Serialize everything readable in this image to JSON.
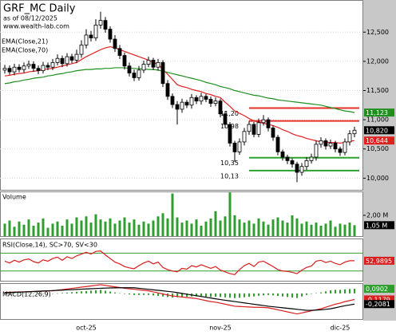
{
  "header": {
    "title": "GRF_MC Daily",
    "date": "as of 08/12/2025",
    "site": "www.wealth-lab.com"
  },
  "chart_data": [
    {
      "type": "candlestick",
      "categories": [
        null,
        null,
        null,
        null,
        null,
        null,
        null,
        null,
        null,
        null,
        null,
        null,
        null,
        null,
        null,
        null,
        null,
        "oct-25",
        null,
        null,
        null,
        null,
        null,
        null,
        null,
        null,
        null,
        null,
        null,
        null,
        null,
        null,
        null,
        null,
        null,
        null,
        null,
        null,
        null,
        null,
        null,
        null,
        null,
        null,
        null,
        "nov-25",
        null,
        null,
        null,
        null,
        null,
        null,
        null,
        null,
        null,
        null,
        null,
        null,
        null,
        null,
        null,
        null,
        null,
        null,
        null,
        null,
        null,
        null,
        null,
        null,
        "dic-25",
        null,
        null,
        null
      ],
      "open": [
        11.85,
        11.88,
        11.82,
        11.9,
        11.86,
        11.92,
        11.95,
        11.88,
        11.84,
        11.93,
        11.9,
        11.98,
        12.05,
        11.96,
        12.08,
        12.02,
        12.12,
        12.28,
        12.45,
        12.4,
        12.62,
        12.7,
        12.55,
        12.38,
        12.22,
        12.1,
        11.92,
        11.8,
        11.72,
        11.85,
        11.95,
        12.02,
        11.9,
        11.98,
        11.62,
        11.4,
        11.26,
        11.18,
        11.3,
        11.25,
        11.38,
        11.32,
        11.4,
        11.35,
        11.28,
        11.32,
        11.1,
        10.92,
        10.6,
        10.45,
        10.62,
        10.8,
        10.92,
        10.75,
        10.95,
        11.0,
        10.86,
        10.7,
        10.45,
        10.36,
        10.3,
        10.24,
        10.1,
        10.2,
        10.3,
        10.36,
        10.58,
        10.64,
        10.55,
        10.6,
        10.5,
        10.44,
        10.62,
        10.76
      ],
      "high": [
        11.94,
        11.93,
        11.96,
        11.95,
        11.98,
        12.01,
        12.0,
        11.93,
        11.99,
        11.98,
        12.04,
        12.12,
        12.1,
        12.14,
        12.13,
        12.2,
        12.36,
        12.55,
        12.52,
        12.72,
        12.85,
        12.76,
        12.6,
        12.45,
        12.28,
        12.15,
        11.98,
        11.86,
        11.92,
        12.01,
        12.08,
        12.06,
        12.04,
        12.02,
        11.68,
        11.45,
        11.32,
        11.36,
        11.34,
        11.44,
        11.42,
        11.46,
        11.44,
        11.4,
        11.38,
        11.36,
        11.15,
        10.96,
        10.64,
        10.68,
        10.86,
        10.98,
        10.96,
        11.02,
        11.08,
        11.04,
        10.9,
        10.74,
        10.49,
        10.4,
        10.34,
        10.28,
        10.26,
        10.36,
        10.42,
        10.64,
        10.7,
        10.68,
        10.66,
        10.64,
        10.54,
        10.68,
        10.82,
        10.88
      ],
      "low": [
        11.79,
        11.77,
        11.76,
        11.81,
        11.8,
        11.87,
        11.82,
        11.78,
        11.79,
        11.85,
        11.85,
        11.93,
        11.9,
        11.91,
        11.97,
        11.97,
        12.06,
        12.22,
        12.34,
        12.35,
        12.56,
        12.49,
        12.32,
        12.16,
        12.04,
        11.86,
        11.74,
        11.66,
        11.67,
        11.8,
        11.9,
        11.85,
        11.84,
        11.56,
        11.34,
        11.2,
        10.92,
        11.12,
        11.2,
        11.19,
        11.27,
        11.26,
        11.3,
        11.22,
        11.23,
        11.04,
        10.86,
        10.54,
        10.28,
        10.4,
        10.56,
        10.74,
        10.7,
        10.7,
        10.9,
        10.8,
        10.64,
        10.39,
        10.3,
        10.24,
        10.18,
        9.93,
        10.04,
        10.14,
        10.25,
        10.3,
        10.52,
        10.49,
        10.5,
        10.44,
        10.38,
        10.39,
        10.56,
        10.7
      ],
      "close": [
        11.88,
        11.82,
        11.9,
        11.86,
        11.92,
        11.95,
        11.88,
        11.84,
        11.93,
        11.9,
        11.98,
        12.05,
        11.96,
        12.08,
        12.02,
        12.12,
        12.28,
        12.45,
        12.4,
        12.62,
        12.7,
        12.55,
        12.38,
        12.22,
        12.1,
        11.92,
        11.8,
        11.72,
        11.85,
        11.95,
        12.02,
        11.9,
        11.98,
        11.62,
        11.4,
        11.26,
        11.18,
        11.3,
        11.25,
        11.38,
        11.32,
        11.4,
        11.35,
        11.28,
        11.32,
        11.1,
        10.92,
        10.6,
        10.45,
        10.62,
        10.8,
        10.92,
        10.75,
        10.95,
        11.0,
        10.86,
        10.7,
        10.45,
        10.36,
        10.3,
        10.24,
        10.1,
        10.2,
        10.3,
        10.36,
        10.58,
        10.64,
        10.55,
        10.6,
        10.5,
        10.44,
        10.62,
        10.76,
        10.82
      ],
      "up_color": "#ffffff",
      "down_color": "#000000",
      "series": [
        {
          "name": "EMA(Close,21)",
          "color": "#e02020",
          "values": [
            11.75,
            11.76,
            11.78,
            11.79,
            11.8,
            11.82,
            11.83,
            11.84,
            11.86,
            11.87,
            11.88,
            11.9,
            11.92,
            11.94,
            11.96,
            11.98,
            12.03,
            12.08,
            12.12,
            12.16,
            12.2,
            12.23,
            12.25,
            12.23,
            12.2,
            12.17,
            12.14,
            12.11,
            12.08,
            12.05,
            12.02,
            11.98,
            11.95,
            11.86,
            11.78,
            11.69,
            11.6,
            11.57,
            11.55,
            11.52,
            11.5,
            11.48,
            11.45,
            11.43,
            11.4,
            11.38,
            11.3,
            11.23,
            11.15,
            11.11,
            11.07,
            11.02,
            10.98,
            10.96,
            10.94,
            10.92,
            10.9,
            10.87,
            10.83,
            10.8,
            10.76,
            10.73,
            10.71,
            10.68,
            10.66,
            10.64,
            10.62,
            10.62,
            10.61,
            10.61,
            10.6,
            10.61,
            10.63,
            10.644
          ]
        },
        {
          "name": "EMA(Close,70)",
          "color": "#1f8f1f",
          "values": [
            11.62,
            11.63,
            11.65,
            11.66,
            11.68,
            11.69,
            11.71,
            11.72,
            11.73,
            11.75,
            11.76,
            11.78,
            11.79,
            11.81,
            11.82,
            11.84,
            11.85,
            11.86,
            11.86,
            11.87,
            11.87,
            11.88,
            11.88,
            11.89,
            11.89,
            11.89,
            11.88,
            11.88,
            11.87,
            11.87,
            11.86,
            11.86,
            11.85,
            11.83,
            11.81,
            11.79,
            11.77,
            11.75,
            11.73,
            11.71,
            11.69,
            11.67,
            11.64,
            11.62,
            11.6,
            11.57,
            11.55,
            11.53,
            11.5,
            11.48,
            11.46,
            11.44,
            11.42,
            11.41,
            11.39,
            11.37,
            11.36,
            11.34,
            11.33,
            11.32,
            11.31,
            11.3,
            11.29,
            11.28,
            11.27,
            11.26,
            11.25,
            11.23,
            11.21,
            11.19,
            11.17,
            11.15,
            11.14,
            11.123
          ]
        }
      ],
      "levels": [
        {
          "value": 11.2,
          "label": "11,20",
          "color": "#e8302a"
        },
        {
          "value": 10.98,
          "label": "10,98",
          "color": "#e8302a"
        },
        {
          "value": 10.35,
          "label": "10,35",
          "color": "#2f9f2f"
        },
        {
          "value": 10.13,
          "label": "10,13",
          "color": "#2f9f2f"
        }
      ],
      "last_labels": [
        {
          "value": 11.123,
          "label": "11,123",
          "color": "#1f8f1f"
        },
        {
          "value": 10.82,
          "label": "10,820",
          "color": "#000000"
        },
        {
          "value": 10.644,
          "label": "10,644",
          "color": "#e02020"
        }
      ],
      "ylim": [
        9.8,
        13.05
      ],
      "yticks": [
        {
          "value": 10,
          "label": "10,000"
        },
        {
          "value": 10.5,
          "label": "10,500"
        },
        {
          "value": 11,
          "label": "11,000"
        },
        {
          "value": 11.5,
          "label": "11,500"
        },
        {
          "value": 12,
          "label": "12,000"
        },
        {
          "value": 12.5,
          "label": "12,500"
        }
      ],
      "grid": true
    },
    {
      "type": "bar",
      "title": "Volume",
      "color": "#2e9e2e",
      "values": [
        1.2,
        1.5,
        0.9,
        1.4,
        1.1,
        1.6,
        1.0,
        1.3,
        1.7,
        0.8,
        1.2,
        1.4,
        1.0,
        1.6,
        1.2,
        1.8,
        1.5,
        1.9,
        1.3,
        2.1,
        1.6,
        1.4,
        1.7,
        1.2,
        1.5,
        1.8,
        1.3,
        1.6,
        1.1,
        1.4,
        1.2,
        1.5,
        1.9,
        2.2,
        1.7,
        4.1,
        1.8,
        1.3,
        1.5,
        1.2,
        1.6,
        1.0,
        1.4,
        1.7,
        2.4,
        1.5,
        1.9,
        4.2,
        2.0,
        1.6,
        1.3,
        1.5,
        1.2,
        1.7,
        1.4,
        1.1,
        1.6,
        1.8,
        1.5,
        1.3,
        2.0,
        1.7,
        1.2,
        1.4,
        1.1,
        1.3,
        1.0,
        1.2,
        1.5,
        0.9,
        1.2,
        1.1,
        1.3,
        1.05
      ],
      "ylim": [
        0,
        4.3
      ],
      "yticks": [
        {
          "value": 2,
          "label": "2,00 M"
        }
      ],
      "last_labels": [
        {
          "value": 1.05,
          "label": "1,05 M",
          "color": "#000000"
        }
      ]
    },
    {
      "type": "line",
      "title": "RSI(Close,14), SC>70, SV<30",
      "series": [
        {
          "color": "#d81e1e",
          "values": [
            52,
            48,
            54,
            50,
            55,
            57,
            51,
            48,
            55,
            52,
            58,
            61,
            54,
            62,
            58,
            64,
            68,
            72,
            68,
            74,
            75,
            66,
            58,
            50,
            46,
            40,
            37,
            35,
            42,
            48,
            52,
            46,
            50,
            38,
            33,
            30,
            28,
            36,
            34,
            42,
            39,
            44,
            40,
            36,
            40,
            32,
            28,
            24,
            22,
            33,
            42,
            47,
            40,
            50,
            52,
            46,
            40,
            33,
            30,
            29,
            27,
            24,
            32,
            38,
            41,
            52,
            54,
            49,
            52,
            47,
            44,
            50,
            53,
            52.9895
          ]
        }
      ],
      "levels": [
        70,
        30
      ],
      "level_color": "#2f9f2f",
      "ylim": [
        8,
        103
      ],
      "last_labels": [
        {
          "value": 52.9895,
          "label": "52,9895",
          "color": "#d81e1e"
        }
      ]
    },
    {
      "type": "macd",
      "title": "MACD(12,26,9)",
      "series": [
        {
          "color": "#d81e1e",
          "values": [
            0.02,
            0.023,
            0.026,
            0.029,
            0.032,
            0.035,
            0.038,
            0.041,
            0.044,
            0.047,
            0.05,
            0.062,
            0.074,
            0.086,
            0.098,
            0.11,
            0.122,
            0.134,
            0.146,
            0.158,
            0.17,
            0.156,
            0.142,
            0.128,
            0.114,
            0.1,
            0.09,
            0.08,
            0.07,
            0.06,
            0.05,
            0.03,
            0.01,
            -0.01,
            -0.03,
            -0.05,
            -0.06,
            -0.07,
            -0.08,
            -0.09,
            -0.1,
            -0.12,
            -0.14,
            -0.16,
            -0.17,
            -0.19,
            -0.21,
            -0.23,
            -0.25,
            -0.255,
            -0.26,
            -0.265,
            -0.27,
            -0.27,
            -0.275,
            -0.28,
            -0.3,
            -0.32,
            -0.34,
            -0.36,
            -0.38,
            -0.4,
            -0.38,
            -0.36,
            -0.34,
            -0.32,
            -0.3,
            -0.27,
            -0.24,
            -0.21,
            -0.19,
            -0.16,
            -0.14,
            -0.1179
          ]
        },
        {
          "color": "#000000",
          "values": [
            0.01,
            0.015,
            0.019,
            0.024,
            0.028,
            0.033,
            0.037,
            0.042,
            0.046,
            0.051,
            0.055,
            0.06,
            0.064,
            0.069,
            0.073,
            0.078,
            0.082,
            0.087,
            0.091,
            0.096,
            0.1,
            0.104,
            0.107,
            0.109,
            0.11,
            0.11,
            0.11,
            0.11,
            0.1,
            0.09,
            0.08,
            0.07,
            0.06,
            0.05,
            0.04,
            0.03,
            0.015,
            0,
            -0.015,
            -0.03,
            -0.045,
            -0.06,
            -0.075,
            -0.09,
            -0.105,
            -0.12,
            -0.133,
            -0.146,
            -0.159,
            -0.172,
            -0.185,
            -0.198,
            -0.211,
            -0.224,
            -0.237,
            -0.25,
            -0.26,
            -0.27,
            -0.28,
            -0.29,
            -0.3,
            -0.31,
            -0.32,
            -0.33,
            -0.33,
            -0.325,
            -0.32,
            -0.31,
            -0.3,
            -0.28,
            -0.26,
            -0.24,
            -0.225,
            -0.2081
          ]
        }
      ],
      "histogram": {
        "color": "#2e9e2e",
        "values": [
          0.01,
          0.008,
          0.007,
          0.005,
          0.004,
          0.002,
          0.001,
          -0.001,
          -0.002,
          -0.004,
          -0.005,
          0.002,
          0.01,
          0.017,
          0.025,
          0.032,
          0.04,
          0.047,
          0.055,
          0.062,
          0.07,
          0.052,
          0.035,
          0.019,
          0.004,
          -0.01,
          -0.02,
          -0.03,
          -0.03,
          -0.03,
          -0.03,
          -0.04,
          -0.05,
          -0.06,
          -0.07,
          -0.08,
          -0.075,
          -0.07,
          -0.065,
          -0.06,
          -0.055,
          -0.06,
          -0.065,
          -0.07,
          -0.065,
          -0.07,
          -0.077,
          -0.084,
          -0.091,
          -0.083,
          -0.075,
          -0.067,
          -0.059,
          -0.046,
          -0.038,
          -0.03,
          -0.04,
          -0.05,
          -0.06,
          -0.07,
          -0.08,
          -0.09,
          -0.06,
          -0.03,
          -0.01,
          0.005,
          0.02,
          0.04,
          0.06,
          0.07,
          0.07,
          0.08,
          0.085,
          0.0902
        ]
      },
      "ylim": [
        -0.5,
        0.2
      ],
      "last_labels": [
        {
          "value": 0.0902,
          "label": "0,0902",
          "color": "#2e9e2e"
        },
        {
          "value": -0.1179,
          "label": "-0,1179",
          "color": "#d81e1e"
        },
        {
          "value": -0.2081,
          "label": "-0,2081",
          "color": "#000000"
        }
      ]
    }
  ]
}
